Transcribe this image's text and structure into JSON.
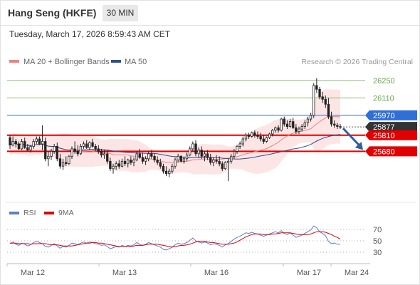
{
  "header": {
    "instrument": "Hang Seng (HKFE)",
    "timeframe": "30 MIN",
    "datetime": "Tuesday, March 17, 2026 8:59:43 AM CET"
  },
  "legend": {
    "items": [
      {
        "label": "MA 20 + Bollinger Bands",
        "color": "#f08080"
      },
      {
        "label": "MA 50",
        "color": "#2c4f8f"
      }
    ],
    "credit": "Research © 2026 Trading Central"
  },
  "chart_data": [
    {
      "type": "candlestick",
      "title": "",
      "x_ticks": [
        "Mar 12",
        "Mar 13",
        "Mar 16",
        "Mar 17",
        "Mar 24"
      ],
      "ylim": [
        25280,
        26320
      ],
      "levels": [
        {
          "value": 26250,
          "label": "26250",
          "role": "target",
          "color": "#6aa84f"
        },
        {
          "value": 26110,
          "label": "26110",
          "role": "target",
          "color": "#6aa84f"
        },
        {
          "value": 25970,
          "label": "25970",
          "role": "pivot",
          "color": "#2f6fd6"
        },
        {
          "value": 25877,
          "label": "25877",
          "role": "last price",
          "color": "#333333"
        },
        {
          "value": 25810,
          "label": "25810",
          "role": "support",
          "color": "#e00000"
        },
        {
          "value": 25680,
          "label": "25680",
          "role": "support",
          "color": "#e00000"
        }
      ],
      "forecast": "down",
      "candles_ohlc": [
        [
          25790,
          25810,
          25700,
          25730
        ],
        [
          25730,
          25800,
          25720,
          25760
        ],
        [
          25760,
          25780,
          25710,
          25740
        ],
        [
          25740,
          25760,
          25690,
          25700
        ],
        [
          25700,
          25780,
          25690,
          25760
        ],
        [
          25760,
          25790,
          25700,
          25710
        ],
        [
          25710,
          25740,
          25680,
          25690
        ],
        [
          25690,
          25730,
          25670,
          25720
        ],
        [
          25720,
          25780,
          25700,
          25760
        ],
        [
          25760,
          25800,
          25740,
          25780
        ],
        [
          25780,
          25800,
          25730,
          25740
        ],
        [
          25740,
          25890,
          25690,
          25760
        ],
        [
          25760,
          25790,
          25600,
          25620
        ],
        [
          25620,
          25680,
          25560,
          25640
        ],
        [
          25640,
          25700,
          25610,
          25680
        ],
        [
          25680,
          25740,
          25660,
          25720
        ],
        [
          25720,
          25750,
          25600,
          25620
        ],
        [
          25620,
          25660,
          25540,
          25560
        ],
        [
          25560,
          25620,
          25530,
          25590
        ],
        [
          25590,
          25640,
          25560,
          25580
        ],
        [
          25580,
          25650,
          25570,
          25640
        ],
        [
          25640,
          25720,
          25620,
          25700
        ],
        [
          25700,
          25760,
          25660,
          25680
        ],
        [
          25680,
          25730,
          25640,
          25660
        ],
        [
          25660,
          25740,
          25650,
          25720
        ],
        [
          25720,
          25760,
          25700,
          25740
        ],
        [
          25740,
          25770,
          25700,
          25710
        ],
        [
          25710,
          25760,
          25690,
          25750
        ],
        [
          25750,
          25780,
          25710,
          25720
        ],
        [
          25720,
          25740,
          25680,
          25700
        ],
        [
          25700,
          25730,
          25660,
          25680
        ],
        [
          25680,
          25700,
          25630,
          25650
        ],
        [
          25650,
          25690,
          25620,
          25660
        ],
        [
          25660,
          25690,
          25580,
          25600
        ],
        [
          25600,
          25630,
          25520,
          25540
        ],
        [
          25540,
          25580,
          25500,
          25560
        ],
        [
          25560,
          25600,
          25530,
          25580
        ],
        [
          25580,
          25610,
          25540,
          25560
        ],
        [
          25560,
          25620,
          25550,
          25600
        ],
        [
          25600,
          25640,
          25560,
          25580
        ],
        [
          25580,
          25620,
          25550,
          25610
        ],
        [
          25610,
          25640,
          25570,
          25590
        ],
        [
          25590,
          25630,
          25560,
          25610
        ],
        [
          25610,
          25680,
          25600,
          25660
        ],
        [
          25660,
          25700,
          25620,
          25630
        ],
        [
          25630,
          25670,
          25580,
          25600
        ],
        [
          25600,
          25640,
          25570,
          25620
        ],
        [
          25620,
          25680,
          25600,
          25660
        ],
        [
          25660,
          25690,
          25620,
          25640
        ],
        [
          25640,
          25660,
          25590,
          25610
        ],
        [
          25610,
          25640,
          25570,
          25590
        ],
        [
          25590,
          25620,
          25540,
          25560
        ],
        [
          25560,
          25580,
          25500,
          25520
        ],
        [
          25520,
          25560,
          25480,
          25500
        ],
        [
          25500,
          25540,
          25470,
          25520
        ],
        [
          25520,
          25580,
          25500,
          25560
        ],
        [
          25560,
          25630,
          25540,
          25610
        ],
        [
          25610,
          25660,
          25590,
          25640
        ],
        [
          25640,
          25650,
          25590,
          25600
        ],
        [
          25600,
          25640,
          25580,
          25620
        ],
        [
          25620,
          25670,
          25600,
          25650
        ],
        [
          25650,
          25720,
          25640,
          25700
        ],
        [
          25700,
          25760,
          25680,
          25740
        ],
        [
          25740,
          25770,
          25640,
          25660
        ],
        [
          25660,
          25710,
          25630,
          25690
        ],
        [
          25690,
          25720,
          25620,
          25640
        ],
        [
          25640,
          25680,
          25600,
          25660
        ],
        [
          25660,
          25690,
          25610,
          25630
        ],
        [
          25630,
          25660,
          25570,
          25590
        ],
        [
          25590,
          25630,
          25560,
          25610
        ],
        [
          25610,
          25650,
          25580,
          25600
        ],
        [
          25600,
          25640,
          25560,
          25580
        ],
        [
          25580,
          25600,
          25520,
          25540
        ],
        [
          25540,
          25600,
          25530,
          25590
        ],
        [
          25590,
          25620,
          25440,
          25600
        ],
        [
          25600,
          25660,
          25580,
          25640
        ],
        [
          25640,
          25700,
          25620,
          25680
        ],
        [
          25680,
          25730,
          25660,
          25720
        ],
        [
          25720,
          25760,
          25700,
          25740
        ],
        [
          25740,
          25800,
          25720,
          25780
        ],
        [
          25780,
          25830,
          25760,
          25810
        ],
        [
          25810,
          25830,
          25780,
          25800
        ],
        [
          25800,
          25840,
          25790,
          25830
        ],
        [
          25830,
          25850,
          25790,
          25810
        ],
        [
          25810,
          25840,
          25780,
          25800
        ],
        [
          25800,
          25830,
          25760,
          25780
        ],
        [
          25780,
          25810,
          25740,
          25760
        ],
        [
          25760,
          25800,
          25750,
          25790
        ],
        [
          25790,
          25830,
          25780,
          25820
        ],
        [
          25820,
          25860,
          25800,
          25850
        ],
        [
          25850,
          25880,
          25830,
          25870
        ],
        [
          25870,
          25890,
          25830,
          25850
        ],
        [
          25850,
          25950,
          25840,
          25940
        ],
        [
          25940,
          25960,
          25880,
          25900
        ],
        [
          25900,
          25930,
          25860,
          25880
        ],
        [
          25880,
          25940,
          25870,
          25920
        ],
        [
          25920,
          25950,
          25860,
          25870
        ],
        [
          25870,
          25900,
          25820,
          25840
        ],
        [
          25840,
          25880,
          25820,
          25860
        ],
        [
          25860,
          25900,
          25840,
          25880
        ],
        [
          25880,
          25930,
          25860,
          25910
        ],
        [
          25910,
          25960,
          25880,
          25940
        ],
        [
          25940,
          25990,
          25920,
          25970
        ],
        [
          25970,
          26230,
          25950,
          26210
        ],
        [
          26210,
          26270,
          26150,
          26180
        ],
        [
          26180,
          26200,
          26100,
          26120
        ],
        [
          26120,
          26160,
          26070,
          26100
        ],
        [
          26100,
          26130,
          26030,
          26060
        ],
        [
          26060,
          26110,
          25940,
          25960
        ],
        [
          25960,
          26000,
          25880,
          25900
        ],
        [
          25900,
          25930,
          25870,
          25890
        ],
        [
          25890,
          25910,
          25860,
          25880
        ],
        [
          25880,
          25900,
          25860,
          25877
        ]
      ]
    },
    {
      "type": "line",
      "title": "",
      "series_names": [
        "RSI",
        "9MA"
      ],
      "colors": [
        "#5b7fd1",
        "#e00000"
      ],
      "yticks": [
        70,
        50,
        30
      ],
      "ylim": [
        20,
        80
      ],
      "rsi": [
        45,
        48,
        44,
        42,
        46,
        44,
        41,
        43,
        47,
        49,
        47,
        45,
        40,
        39,
        42,
        45,
        41,
        37,
        40,
        39,
        42,
        46,
        45,
        43,
        46,
        48,
        46,
        48,
        47,
        45,
        44,
        42,
        43,
        40,
        36,
        38,
        40,
        39,
        42,
        40,
        42,
        41,
        43,
        47,
        44,
        42,
        44,
        47,
        45,
        43,
        41,
        39,
        35,
        34,
        36,
        39,
        43,
        46,
        44,
        45,
        47,
        51,
        55,
        50,
        48,
        46,
        48,
        46,
        43,
        45,
        44,
        42,
        39,
        43,
        45,
        49,
        53,
        56,
        58,
        61,
        64,
        63,
        65,
        63,
        62,
        60,
        58,
        60,
        62,
        64,
        66,
        64,
        68,
        63,
        61,
        64,
        60,
        56,
        58,
        60,
        63,
        66,
        69,
        76,
        73,
        66,
        63,
        59,
        49,
        45,
        46,
        44,
        44
      ],
      "ma9": [
        46,
        46,
        46,
        45,
        45,
        45,
        45,
        44,
        45,
        45,
        45,
        45,
        45,
        44,
        43,
        43,
        43,
        42,
        41,
        41,
        41,
        41,
        42,
        43,
        44,
        45,
        46,
        46,
        47,
        47,
        46,
        46,
        45,
        44,
        43,
        42,
        41,
        40,
        40,
        40,
        40,
        40,
        41,
        42,
        42,
        42,
        43,
        44,
        44,
        44,
        44,
        43,
        42,
        41,
        40,
        39,
        40,
        41,
        42,
        42,
        43,
        44,
        46,
        48,
        49,
        49,
        49,
        48,
        47,
        47,
        46,
        45,
        44,
        44,
        44,
        45,
        46,
        48,
        51,
        54,
        57,
        59,
        61,
        62,
        62,
        62,
        61,
        61,
        61,
        62,
        62,
        63,
        64,
        64,
        64,
        64,
        63,
        62,
        61,
        61,
        61,
        61,
        62,
        64,
        66,
        66,
        66,
        65,
        63,
        61,
        58,
        56,
        53
      ]
    }
  ]
}
